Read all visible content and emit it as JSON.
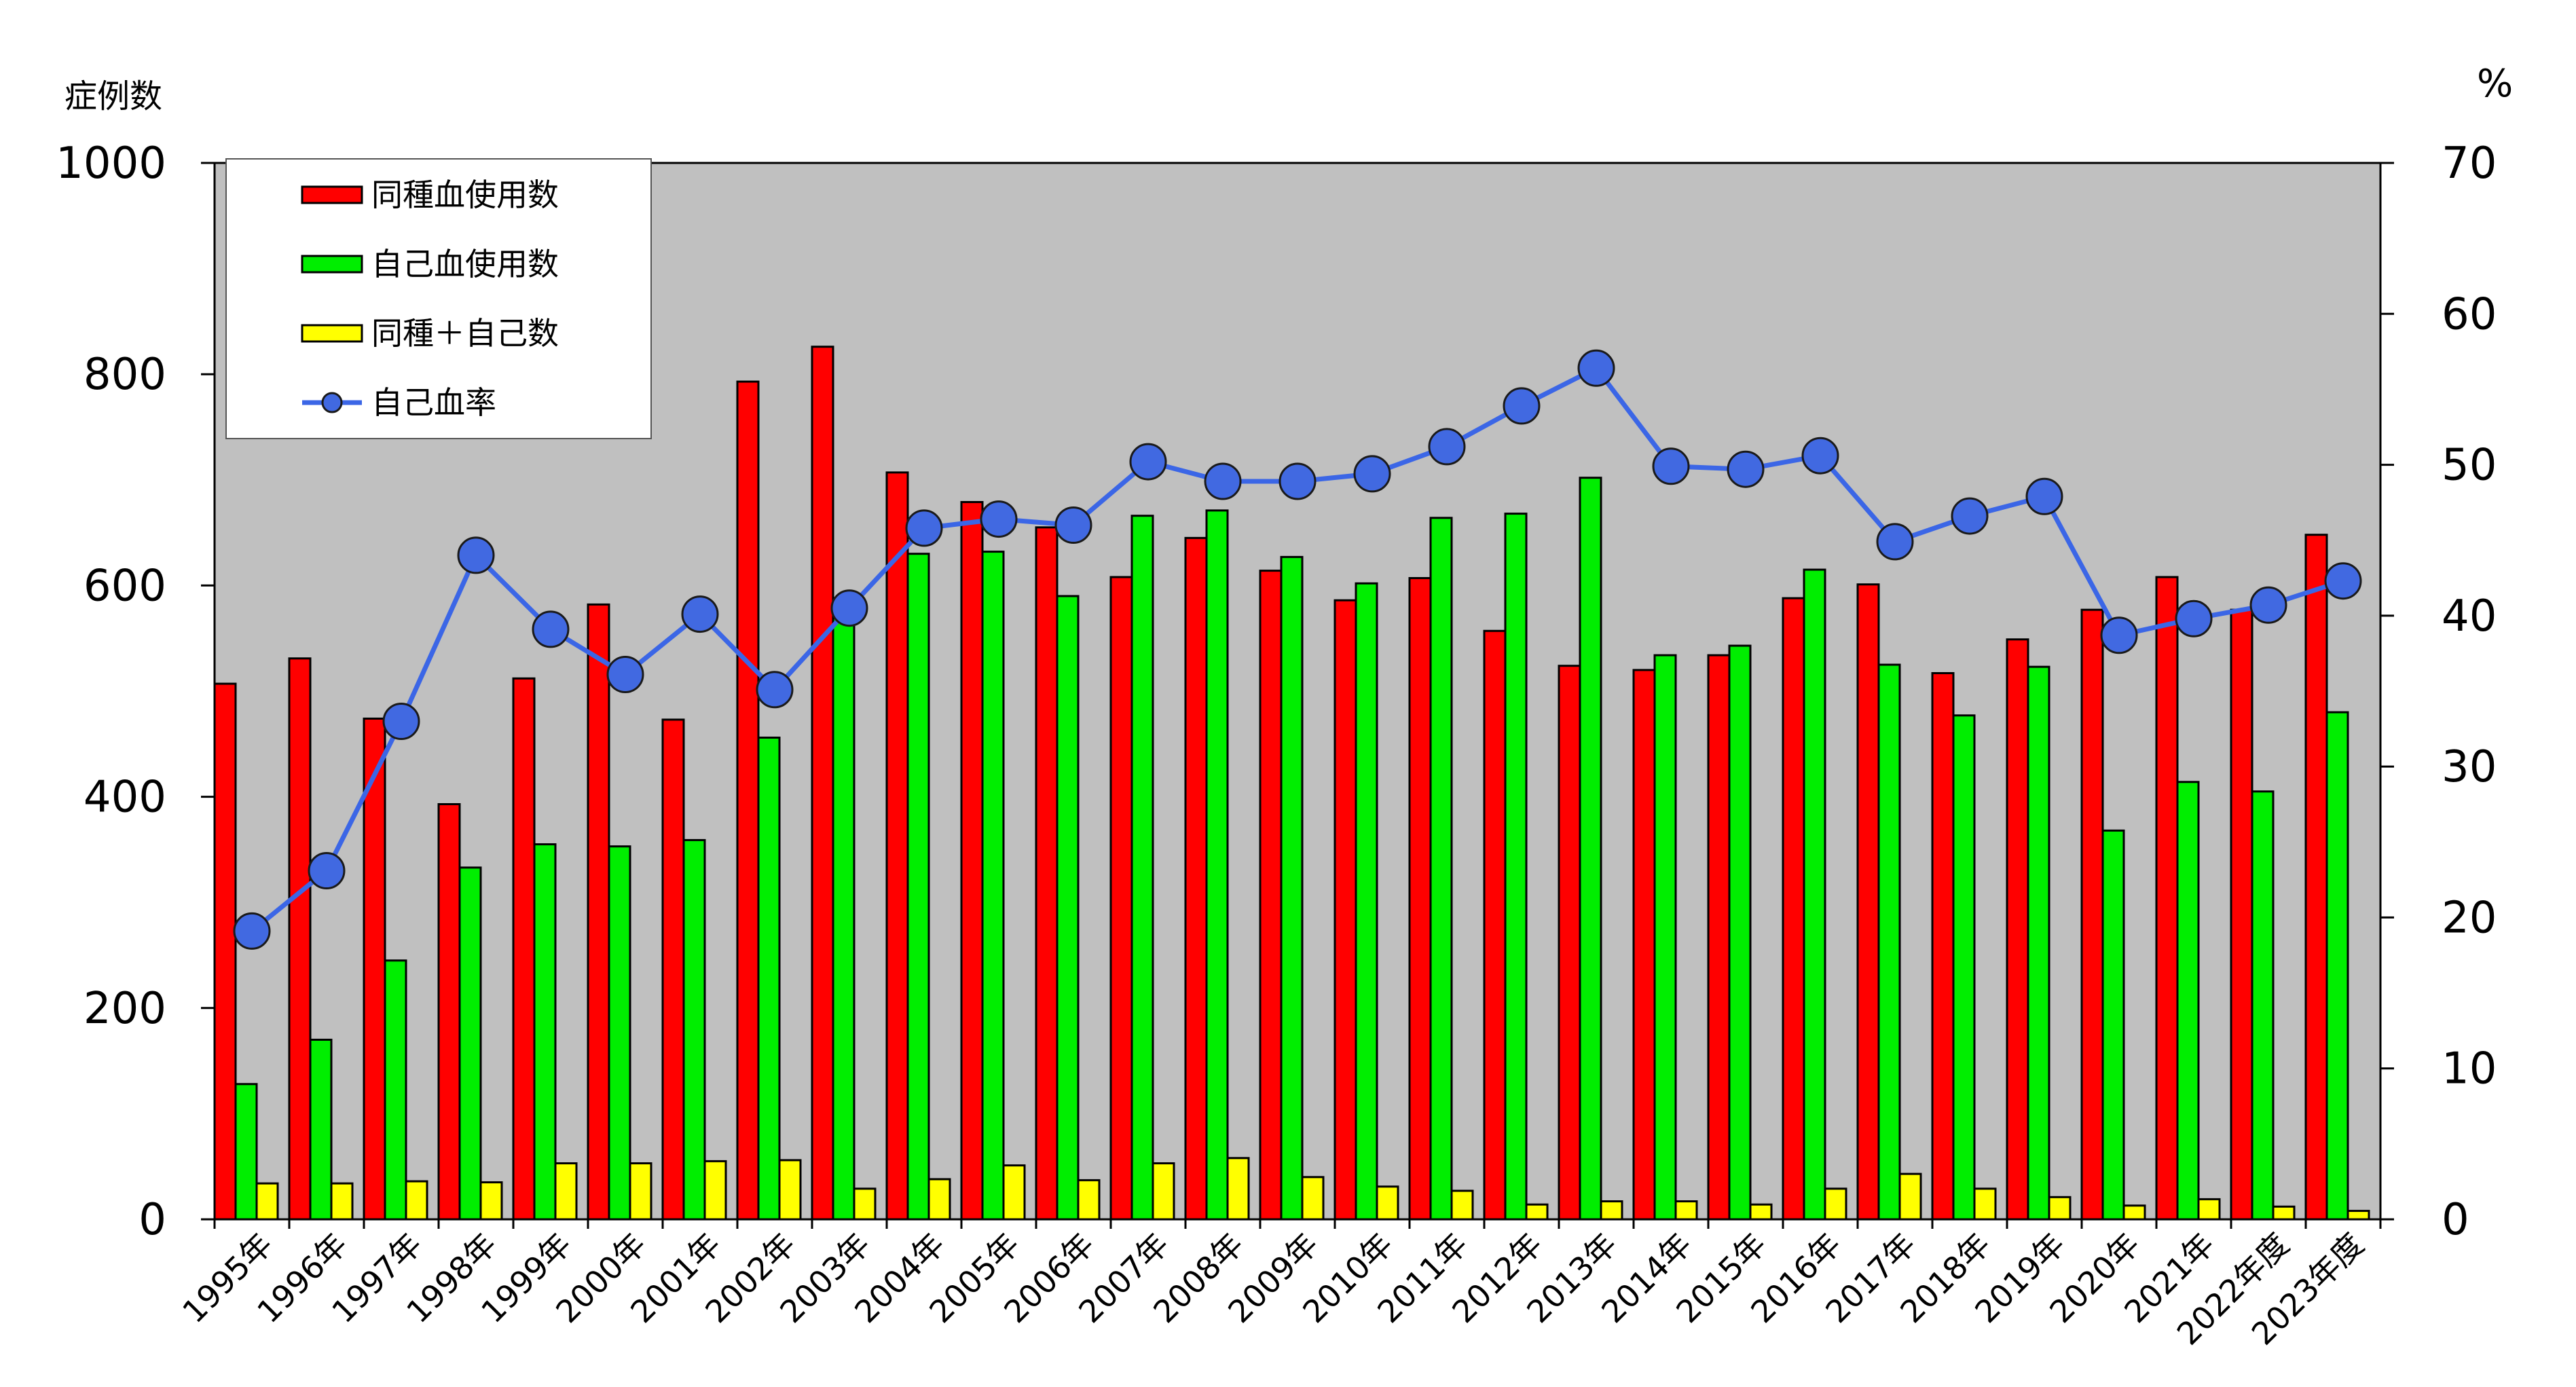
{
  "chart_data": {
    "type": "bar",
    "left_axis_label": "症例数",
    "right_axis_label": "%",
    "ylim_left": [
      0,
      1000
    ],
    "ylim_right": [
      0,
      70
    ],
    "yticks_left": [
      "0",
      "200",
      "400",
      "600",
      "800",
      "1000"
    ],
    "yticks_right": [
      "0",
      "10",
      "20",
      "30",
      "40",
      "50",
      "60",
      "70"
    ],
    "grid": false,
    "legend_position": "top-left",
    "categories": [
      "1995年",
      "1996年",
      "1997年",
      "1998年",
      "1999年",
      "2000年",
      "2001年",
      "2002年",
      "2003年",
      "2004年",
      "2005年",
      "2006年",
      "2007年",
      "2008年",
      "2009年",
      "2010年",
      "2011年",
      "2012年",
      "2013年",
      "2014年",
      "2015年",
      "2016年",
      "2017年",
      "2018年",
      "2019年",
      "2020年",
      "2021年",
      "2022年度",
      "2023年度"
    ],
    "series": [
      {
        "name": "同種血使用数",
        "type": "bar",
        "axis": "left",
        "color": "#ff0000",
        "values": [
          507,
          531,
          474,
          393,
          512,
          582,
          473,
          793,
          826,
          707,
          679,
          655,
          608,
          645,
          614,
          586,
          607,
          557,
          524,
          520,
          534,
          588,
          601,
          517,
          549,
          577,
          608,
          577,
          648
        ]
      },
      {
        "name": "自己血使用数",
        "type": "bar",
        "axis": "left",
        "color": "#00ee00",
        "values": [
          128,
          170,
          245,
          333,
          355,
          353,
          359,
          456,
          570,
          630,
          632,
          590,
          666,
          671,
          627,
          602,
          664,
          668,
          702,
          534,
          543,
          615,
          525,
          477,
          523,
          368,
          414,
          405,
          480
        ]
      },
      {
        "name": "同種＋自己数",
        "type": "bar",
        "axis": "left",
        "color": "#ffff00",
        "values": [
          34,
          34,
          36,
          35,
          53,
          53,
          55,
          56,
          29,
          38,
          51,
          37,
          53,
          58,
          40,
          31,
          27,
          14,
          17,
          17,
          14,
          29,
          43,
          29,
          21,
          13,
          19,
          12,
          8
        ]
      },
      {
        "name": "自己血率",
        "type": "line",
        "axis": "right",
        "color": "#3b66e6",
        "marker_color": "#4169e1",
        "values": [
          19.1,
          23.1,
          33.0,
          44.0,
          39.1,
          36.1,
          40.1,
          35.1,
          40.5,
          45.8,
          46.4,
          46.0,
          50.2,
          48.9,
          48.9,
          49.4,
          51.2,
          53.9,
          56.4,
          49.9,
          49.7,
          50.6,
          44.9,
          46.6,
          47.9,
          38.7,
          39.8,
          40.7,
          42.3
        ]
      }
    ]
  }
}
